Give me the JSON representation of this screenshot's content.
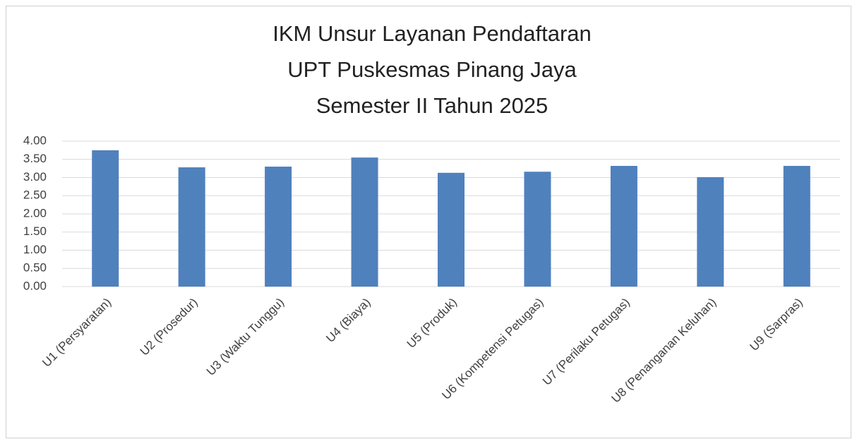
{
  "chart_data": {
    "type": "bar",
    "title": [
      "IKM Unsur Layanan Pendaftaran",
      "UPT Puskesmas Pinang Jaya",
      "Semester II Tahun 2025"
    ],
    "categories": [
      "U1 (Persyaratan)",
      "U2 (Prosedur)",
      "U3 (Waktu Tunggu)",
      "U4 (Biaya)",
      "U5 (Produk)",
      "U6 (Kompetensi Petugas)",
      "U7 (Perilaku Petugas)",
      "U8 (Penanganan Keluhan)",
      "U9 (Sarpras)"
    ],
    "values": [
      3.75,
      3.28,
      3.3,
      3.55,
      3.13,
      3.16,
      3.32,
      3.01,
      3.32
    ],
    "color": "#4f81bd",
    "ylim": [
      0,
      4
    ],
    "yticks": [
      {
        "value": 0,
        "label": "0.00"
      },
      {
        "value": 0.5,
        "label": "0.50"
      },
      {
        "value": 1,
        "label": "1.00"
      },
      {
        "value": 1.5,
        "label": "1.50"
      },
      {
        "value": 2,
        "label": "2.00"
      },
      {
        "value": 2.5,
        "label": "2.50"
      },
      {
        "value": 3,
        "label": "3.00"
      },
      {
        "value": 3.5,
        "label": "3.50"
      },
      {
        "value": 4,
        "label": "4.00"
      }
    ],
    "grid": true
  }
}
